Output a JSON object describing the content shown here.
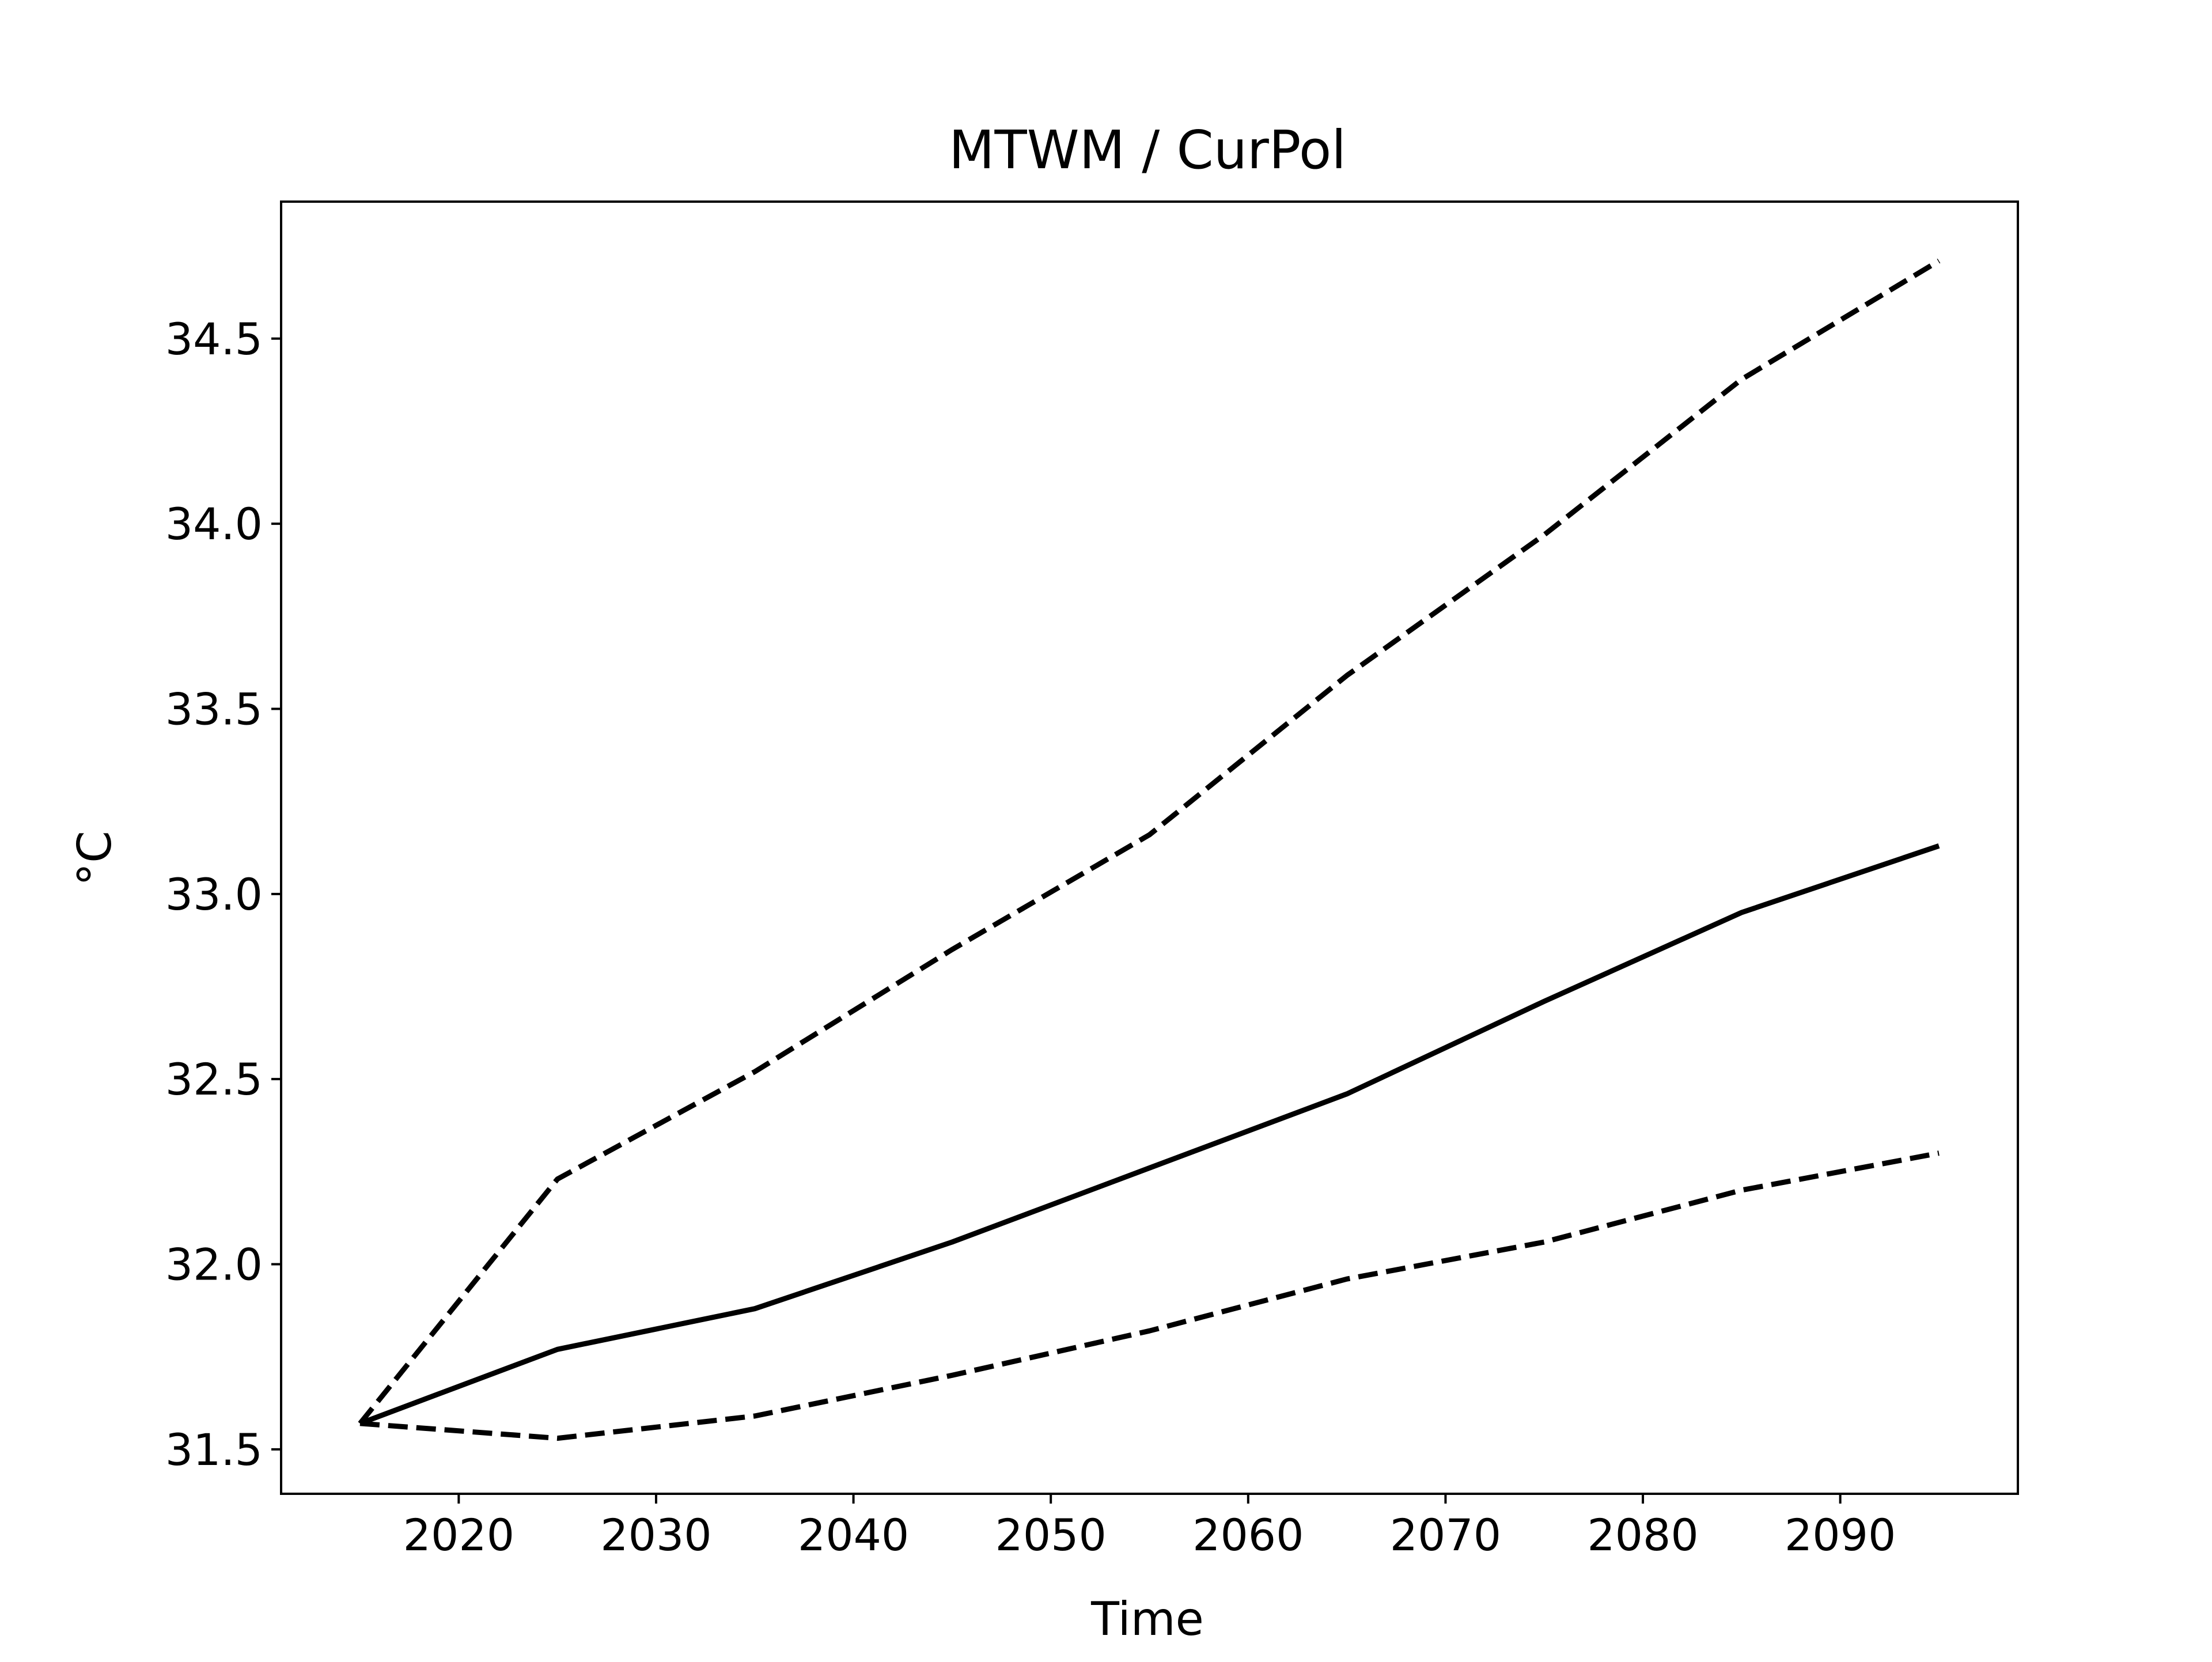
{
  "chart_data": {
    "type": "line",
    "title": "MTWM / CurPol",
    "xlabel": "Time",
    "ylabel": "°C",
    "xlim": [
      2011,
      2099
    ],
    "ylim": [
      31.38,
      34.87
    ],
    "x_ticks": [
      2020,
      2030,
      2040,
      2050,
      2060,
      2070,
      2080,
      2090
    ],
    "y_ticks": [
      31.5,
      32.0,
      32.5,
      33.0,
      33.5,
      34.0,
      34.5
    ],
    "y_tick_labels": [
      "31.5",
      "32.0",
      "32.5",
      "33.0",
      "33.5",
      "34.0",
      "34.5"
    ],
    "grid": false,
    "legend": "none",
    "x": [
      2015,
      2025,
      2035,
      2045,
      2055,
      2065,
      2075,
      2085,
      2095
    ],
    "series": [
      {
        "style": "dashed",
        "color": "#000000",
        "values": [
          31.57,
          32.23,
          32.52,
          32.85,
          33.16,
          33.59,
          33.97,
          34.39,
          34.71
        ]
      },
      {
        "style": "solid",
        "color": "#000000",
        "values": [
          31.57,
          31.77,
          31.88,
          32.06,
          32.26,
          32.46,
          32.71,
          32.95,
          33.13
        ]
      },
      {
        "style": "dashed",
        "color": "#000000",
        "values": [
          31.57,
          31.53,
          31.59,
          31.7,
          31.82,
          31.96,
          32.06,
          32.2,
          32.3
        ]
      }
    ]
  }
}
